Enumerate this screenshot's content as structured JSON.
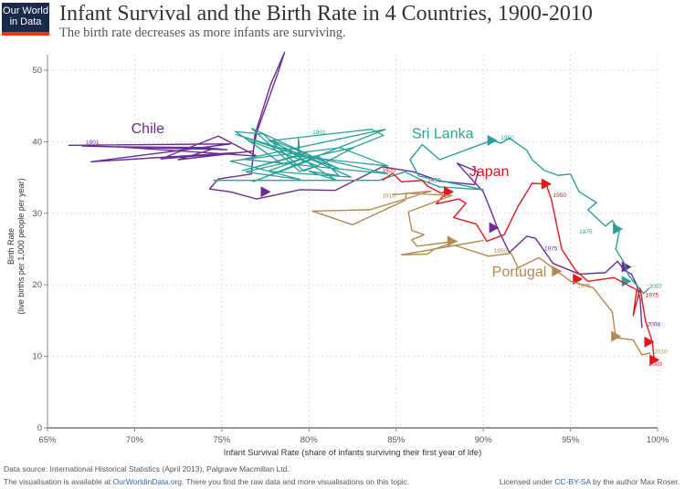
{
  "header": {
    "logo_line1": "Our World",
    "logo_line2": "in Data",
    "title": "Infant Survival and the Birth Rate in 4 Countries, 1900-2010",
    "subtitle": "The birth rate decreases as more infants are surviving."
  },
  "footer": {
    "source": "Data source:  International Historical Statistics (April 2013), Palgrave Macmillan Ltd.",
    "avail_prefix": "The visualisation is available at ",
    "avail_link": "OurWorldinData.org",
    "avail_suffix": ". There you find the raw data and more visualisations on this topic.",
    "license_prefix": "Licensed under ",
    "license_link": "CC-BY-SA",
    "license_suffix": " by the author Max Roser."
  },
  "chart_data": {
    "type": "line",
    "title": "Infant Survival and the Birth Rate in 4 Countries, 1900-2010",
    "subtitle": "The birth rate decreases as more infants are surviving.",
    "xlabel": "Infant Survival Rate (share of infants surviving their first year of life)",
    "ylabel": "Birth Rate",
    "ylabel2": "(live births per 1,000 people per year)",
    "xlim": [
      65,
      100
    ],
    "ylim": [
      0,
      53
    ],
    "xticks": [
      "65%",
      "70%",
      "75%",
      "80%",
      "85%",
      "90%",
      "95%",
      "100%"
    ],
    "xtick_values": [
      65,
      70,
      75,
      80,
      85,
      90,
      95,
      100
    ],
    "yticks": [
      "0",
      "10",
      "20",
      "30",
      "40",
      "50"
    ],
    "ytick_values": [
      0,
      10,
      20,
      30,
      40,
      50
    ],
    "grid": true,
    "series": [
      {
        "name": "Chile",
        "color": "#6a2c91",
        "label": {
          "text": "Chile",
          "x": 69.8,
          "y": 41.2
        },
        "points": [
          [
            66.2,
            39.5
          ],
          [
            75.5,
            39.7
          ],
          [
            67.5,
            37.2
          ],
          [
            76.0,
            38.5
          ],
          [
            71.5,
            37.6
          ],
          [
            74.8,
            40.8
          ],
          [
            77.0,
            38.0
          ],
          [
            69.0,
            39.3
          ],
          [
            74.0,
            39.2
          ],
          [
            75.3,
            38.9
          ],
          [
            67.0,
            39.4
          ],
          [
            74.5,
            39.0
          ],
          [
            72.5,
            37.5
          ],
          [
            76.8,
            38.7
          ],
          [
            77.0,
            41.3
          ],
          [
            78.2,
            49.5
          ],
          [
            78.6,
            52.5
          ],
          [
            77.8,
            48.0
          ],
          [
            76.9,
            41.0
          ],
          [
            76.7,
            35.5
          ],
          [
            74.8,
            34.8
          ],
          [
            74.3,
            33.4
          ],
          [
            75.5,
            33.0
          ],
          [
            77.0,
            32.0
          ],
          [
            79.5,
            33.3
          ],
          [
            81.5,
            33.2
          ],
          [
            84.2,
            36.5
          ],
          [
            86.0,
            35.8
          ],
          [
            87.5,
            34.5
          ],
          [
            89.5,
            34.0
          ],
          [
            89.7,
            35.8
          ],
          [
            88.5,
            37.0
          ],
          [
            90.0,
            33.0
          ],
          [
            90.5,
            30.0
          ],
          [
            90.8,
            28.0
          ],
          [
            91.5,
            24.5
          ],
          [
            92.5,
            26.8
          ],
          [
            93.0,
            26.5
          ],
          [
            94.0,
            23.0
          ],
          [
            95.5,
            21.5
          ],
          [
            97.0,
            21.7
          ],
          [
            97.7,
            23.3
          ],
          [
            98.1,
            22.0
          ],
          [
            98.5,
            21.5
          ],
          [
            98.8,
            20.0
          ],
          [
            99.0,
            18.0
          ],
          [
            99.1,
            14.0
          ]
        ],
        "year_labels": [
          {
            "text": "1901",
            "x": 67.2,
            "y": 39.7
          },
          {
            "text": "1950",
            "x": 86.8,
            "y": 34.4
          },
          {
            "text": "1975",
            "x": 93.5,
            "y": 24.8
          },
          {
            "text": "2008",
            "x": 99.4,
            "y": 14.2
          }
        ],
        "arrows": [
          [
            77.5,
            33.0
          ],
          [
            90.6,
            28.0
          ],
          [
            98.2,
            22.5
          ]
        ]
      },
      {
        "name": "Sri Lanka",
        "color": "#2aa198",
        "label": {
          "text": "Sri Lanka",
          "x": 85.9,
          "y": 40.5
        },
        "points": [
          [
            74.5,
            34.6
          ],
          [
            84.0,
            34.6
          ],
          [
            85.5,
            35.8
          ],
          [
            86.5,
            34.6
          ],
          [
            87.5,
            33.7
          ],
          [
            90.0,
            33.3
          ],
          [
            86.3,
            35.2
          ],
          [
            85.8,
            37.5
          ],
          [
            86.5,
            39.6
          ],
          [
            87.5,
            37.5
          ],
          [
            90.5,
            40.2
          ],
          [
            91.0,
            39.8
          ],
          [
            91.5,
            40.5
          ],
          [
            92.5,
            38.8
          ],
          [
            92.8,
            37.5
          ],
          [
            93.5,
            36.0
          ],
          [
            94.3,
            35.3
          ],
          [
            95.0,
            35.5
          ],
          [
            95.5,
            33.0
          ],
          [
            96.5,
            31.5
          ],
          [
            96.0,
            30.5
          ],
          [
            97.0,
            28.2
          ],
          [
            97.4,
            29.0
          ],
          [
            97.8,
            27.5
          ],
          [
            97.6,
            25.0
          ],
          [
            98.1,
            23.0
          ],
          [
            98.3,
            21.5
          ],
          [
            98.6,
            20.5
          ],
          [
            99.2,
            18.8
          ],
          [
            99.5,
            19.5
          ]
        ],
        "scribble_region": {
          "x": [
            75,
            85
          ],
          "y": [
            30,
            42
          ]
        },
        "year_labels": [
          {
            "text": "1901",
            "x": 80.2,
            "y": 41.1
          },
          {
            "text": "1950",
            "x": 91.0,
            "y": 40.3
          },
          {
            "text": "1975",
            "x": 95.5,
            "y": 27.2
          },
          {
            "text": "2007",
            "x": 99.5,
            "y": 19.5
          }
        ],
        "arrows": [
          [
            90.5,
            40.2
          ],
          [
            97.7,
            27.8
          ],
          [
            98.2,
            20.5
          ]
        ]
      },
      {
        "name": "Japan",
        "color": "#e3161c",
        "label": {
          "text": "Japan",
          "x": 89.2,
          "y": 35.2
        },
        "points": [
          [
            84.2,
            34.6
          ],
          [
            84.8,
            35.6
          ],
          [
            85.3,
            34.4
          ],
          [
            86.5,
            34.6
          ],
          [
            86.8,
            33.8
          ],
          [
            87.6,
            32.8
          ],
          [
            88.0,
            33.3
          ],
          [
            87.3,
            31.3
          ],
          [
            88.6,
            32.0
          ],
          [
            89.0,
            31.4
          ],
          [
            88.3,
            29.4
          ],
          [
            89.6,
            28.5
          ],
          [
            90.2,
            26.1
          ],
          [
            91.2,
            27.0
          ],
          [
            92.0,
            31.0
          ],
          [
            92.8,
            34.2
          ],
          [
            93.6,
            34.1
          ],
          [
            93.9,
            32.0
          ],
          [
            94.5,
            25.0
          ],
          [
            95.3,
            22.0
          ],
          [
            96.0,
            20.5
          ],
          [
            97.5,
            21.0
          ],
          [
            98.8,
            19.3
          ],
          [
            98.6,
            15.7
          ],
          [
            99.0,
            19.5
          ],
          [
            99.3,
            15.0
          ],
          [
            99.7,
            12.0
          ],
          [
            99.8,
            9.5
          ]
        ],
        "year_labels": [
          {
            "text": "1920",
            "x": 84.2,
            "y": 35.7
          },
          {
            "text": "1950",
            "x": 94.0,
            "y": 32.3
          },
          {
            "text": "1975",
            "x": 99.3,
            "y": 18.3
          },
          {
            "text": "2009",
            "x": 99.5,
            "y": 8.7
          }
        ],
        "arrows": [
          [
            88.0,
            33.0
          ],
          [
            93.6,
            34.1
          ],
          [
            95.4,
            20.8
          ],
          [
            99.5,
            12.0
          ],
          [
            99.8,
            9.5
          ]
        ]
      },
      {
        "name": "Portugal",
        "color": "#b5884f",
        "label": {
          "text": "Portugal",
          "x": 90.5,
          "y": 21.2
        },
        "points": [
          [
            84.8,
            32.6
          ],
          [
            87.0,
            33.1
          ],
          [
            83.5,
            30.5
          ],
          [
            80.2,
            30.3
          ],
          [
            82.5,
            28.4
          ],
          [
            85.5,
            31.8
          ],
          [
            85.6,
            32.8
          ],
          [
            88.2,
            32.5
          ],
          [
            85.7,
            30.2
          ],
          [
            85.9,
            27.6
          ],
          [
            86.6,
            27.0
          ],
          [
            85.9,
            26.3
          ],
          [
            86.2,
            25.4
          ],
          [
            88.5,
            26.1
          ],
          [
            87.2,
            25.0
          ],
          [
            86.8,
            24.3
          ],
          [
            85.3,
            24.2
          ],
          [
            90.0,
            26.2
          ],
          [
            88.4,
            25.5
          ],
          [
            90.3,
            24.0
          ],
          [
            91.6,
            24.4
          ],
          [
            92.0,
            22.4
          ],
          [
            93.2,
            23.8
          ],
          [
            94.3,
            21.8
          ],
          [
            95.0,
            20.5
          ],
          [
            96.3,
            19.6
          ],
          [
            97.4,
            16.2
          ],
          [
            97.6,
            12.6
          ],
          [
            98.6,
            12.3
          ],
          [
            99.1,
            10.2
          ],
          [
            99.6,
            10.5
          ]
        ],
        "year_labels": [
          {
            "text": "1910",
            "x": 84.2,
            "y": 32.2
          },
          {
            "text": "1950",
            "x": 90.6,
            "y": 24.5
          },
          {
            "text": "1975",
            "x": 95.4,
            "y": 19.6
          },
          {
            "text": "2010",
            "x": 99.8,
            "y": 10.4
          }
        ],
        "arrows": [
          [
            88.2,
            26.1
          ],
          [
            94.2,
            21.9
          ],
          [
            97.6,
            12.8
          ]
        ]
      }
    ]
  }
}
